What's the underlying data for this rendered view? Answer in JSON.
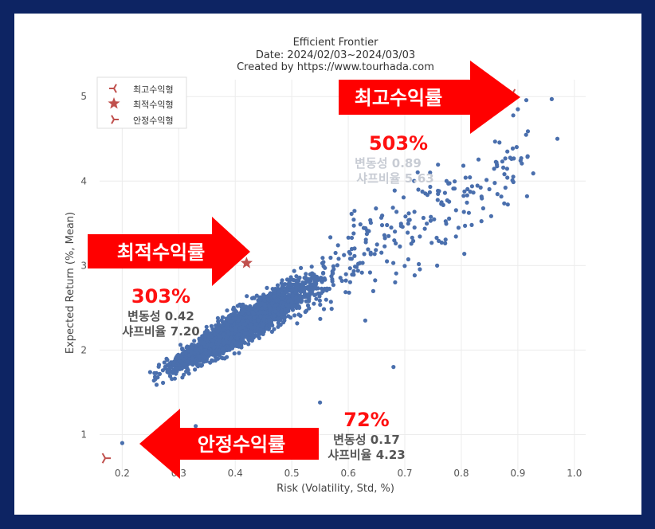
{
  "chart_data": {
    "type": "scatter",
    "title": "Efficient Frontier",
    "subtitle_lines": [
      "Date: 2024/02/03~2024/03/03",
      "Created by https://www.tourhada.com"
    ],
    "xlabel": "Risk (Volatility, Std, %)",
    "ylabel": "Expected Return (%, Mean)",
    "xlim": [
      0.16,
      1.02
    ],
    "ylim": [
      0.58,
      5.2
    ],
    "xticks": [
      "0.2",
      "0.3",
      "0.4",
      "0.5",
      "0.6",
      "0.7",
      "0.8",
      "0.9",
      "1.0"
    ],
    "yticks": [
      "1",
      "2",
      "3",
      "4",
      "5"
    ],
    "xtick_values": [
      0.2,
      0.3,
      0.4,
      0.5,
      0.6,
      0.7,
      0.8,
      0.9,
      1.0
    ],
    "ytick_values": [
      1,
      2,
      3,
      4,
      5
    ],
    "grid": true,
    "point_color": "#4a6fad",
    "marker_color": "#c0504d",
    "legend_position": "top-left",
    "legend": [
      {
        "label": "최고수익형",
        "marker": "tri-left"
      },
      {
        "label": "최적수익형",
        "marker": "star"
      },
      {
        "label": "안정수익형",
        "marker": "tri-right"
      }
    ],
    "special_points": [
      {
        "name": "최고수익형",
        "x": 0.89,
        "y": 5.03
      },
      {
        "name": "최적수익형",
        "x": 0.42,
        "y": 3.03
      },
      {
        "name": "안정수익형",
        "x": 0.17,
        "y": 0.72
      }
    ],
    "cloud": {
      "trend_points": [
        [
          0.24,
          1.6
        ],
        [
          0.97,
          4.5
        ]
      ],
      "outlier_points": [
        [
          0.2,
          0.9
        ],
        [
          0.33,
          1.1
        ],
        [
          0.96,
          4.97
        ],
        [
          0.97,
          4.5
        ],
        [
          0.9,
          4.85
        ],
        [
          0.68,
          1.8
        ],
        [
          0.63,
          2.35
        ],
        [
          0.55,
          1.38
        ]
      ]
    }
  },
  "annotations": {
    "top": {
      "arrow_label": "최고수익률",
      "pct": "503%",
      "vol": "변동성 0.89",
      "sharpe": "샤프비율  5.63"
    },
    "mid": {
      "arrow_label": "최적수익률",
      "pct": "303%",
      "vol": "변동성 0.42",
      "sharpe": "샤프비율  7.20"
    },
    "low": {
      "arrow_label": "안정수익률",
      "pct": "72%",
      "vol": "변동성 0.17",
      "sharpe": "샤프비율  4.23"
    }
  },
  "colors": {
    "frame": "#0d2463",
    "arrow": "#ff0000",
    "accent_text": "#ff1010"
  }
}
